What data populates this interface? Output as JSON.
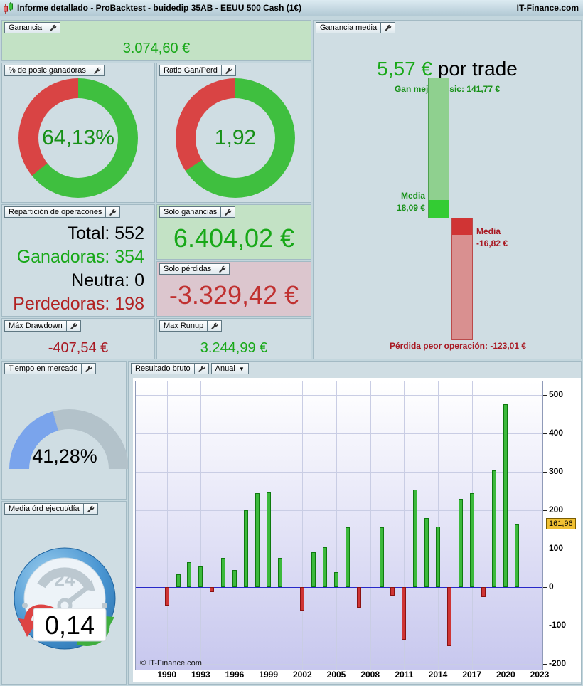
{
  "title_bar": {
    "title": "Informe detallado - ProBacktest - buidedip 35AB - EEUU 500 Cash (1€)",
    "brand": "IT-Finance.com"
  },
  "colors": {
    "green_text": "#18a818",
    "red_text": "#b22222",
    "donut_green": "#3fbf3f",
    "donut_red": "#d94444",
    "gauge_blue": "#7aa4ec",
    "gauge_gray": "#b3c2ca",
    "bar_green": "#3cb93c",
    "bar_red": "#cf3434",
    "highlight_label_bg": "#f0c033"
  },
  "panels": {
    "ganancia": {
      "header": "Ganancia",
      "value": "3.074,60 €"
    },
    "win_rate": {
      "header": "% de posic ganadoras",
      "value": "64,13%"
    },
    "ratio": {
      "header": "Ratio Gan/Perd",
      "value": "1,92"
    },
    "ganancia_media": {
      "header": "Ganancia media",
      "headline_value": "5,57 €",
      "headline_suffix": " por trade",
      "best_label": "Gan mejor posic: 141,77 €",
      "avg_win_label": "Media",
      "avg_win_value": "18,09 €",
      "avg_loss_label": "Media",
      "avg_loss_value": "-16,82 €",
      "worst_label": "Pérdida peor operación: -123,01 €"
    },
    "reparticion": {
      "header": "Repartición de operacones",
      "rows": [
        {
          "label": "Total: ",
          "value": "552",
          "color": "#000000"
        },
        {
          "label": "Ganadoras: ",
          "value": "354",
          "color": "#18a818"
        },
        {
          "label": "Neutra: ",
          "value": "0",
          "color": "#000000"
        },
        {
          "label": "Perdedoras: ",
          "value": "198",
          "color": "#b22222"
        }
      ]
    },
    "solo_ganancias": {
      "header": "Solo ganancias",
      "value": "6.404,02 €"
    },
    "solo_perdidas": {
      "header": "Solo pérdidas",
      "value": "-3.329,42 €"
    },
    "max_drawdown": {
      "header": "Máx Drawdown",
      "value": "-407,54 €"
    },
    "max_runup": {
      "header": "Max Runup",
      "value": "3.244,99 €"
    },
    "tiempo": {
      "header": "Tiempo en mercado",
      "value": "41,28%"
    },
    "media_ord": {
      "header": "Media órd ejecut/día",
      "value": "0,14",
      "clock_label": "24"
    },
    "resultado": {
      "header": "Resultado bruto",
      "period": "Anual",
      "watermark": "© IT-Finance.com",
      "last_value_label": "161,96"
    }
  },
  "chart_data": [
    {
      "id": "win_rate_donut",
      "type": "pie",
      "title": "% de posic ganadoras",
      "center_label": "64,13%",
      "slices": [
        {
          "name": "ganadoras",
          "value": 64.13,
          "color": "#3fbf3f"
        },
        {
          "name": "perdedoras",
          "value": 35.87,
          "color": "#d94444"
        }
      ]
    },
    {
      "id": "ratio_donut",
      "type": "pie",
      "title": "Ratio Gan/Perd",
      "center_label": "1,92",
      "slices": [
        {
          "name": "ganancias",
          "value": 65.75,
          "color": "#3fbf3f"
        },
        {
          "name": "pérdidas",
          "value": 34.25,
          "color": "#d94444"
        }
      ]
    },
    {
      "id": "tiempo_gauge",
      "type": "pie",
      "title": "Tiempo en mercado",
      "percent": 41.28,
      "center_label": "41,28%"
    },
    {
      "id": "ganancia_media_waterfall",
      "type": "bar",
      "title": "Ganancia media",
      "unit": "€",
      "avg_per_trade": 5.57,
      "points": [
        {
          "name": "mejor posición",
          "value": 141.77
        },
        {
          "name": "media ganadora",
          "value": 18.09
        },
        {
          "name": "media perdedora",
          "value": -16.82
        },
        {
          "name": "peor operación",
          "value": -123.01
        }
      ]
    },
    {
      "id": "annual_results",
      "type": "bar",
      "title": "Resultado bruto",
      "period": "Anual",
      "xlabel": "",
      "ylabel": "",
      "grid": true,
      "legend": false,
      "x": [
        1990,
        1991,
        1992,
        1993,
        1994,
        1995,
        1996,
        1997,
        1998,
        1999,
        2000,
        2001,
        2002,
        2003,
        2004,
        2005,
        2006,
        2007,
        2008,
        2009,
        2010,
        2011,
        2012,
        2013,
        2014,
        2015,
        2016,
        2017,
        2018,
        2019,
        2020,
        2021
      ],
      "values": [
        -48,
        33,
        64,
        54,
        -14,
        75,
        44,
        200,
        244,
        246,
        75,
        0,
        -62,
        91,
        103,
        38,
        155,
        -53,
        0,
        155,
        -22,
        -138,
        254,
        180,
        157,
        -153,
        229,
        245,
        -27,
        303,
        476,
        161.96
      ],
      "xticks": [
        1990,
        1993,
        1996,
        1999,
        2002,
        2005,
        2008,
        2011,
        2014,
        2017,
        2020,
        2023
      ],
      "yticks": [
        -200,
        -100,
        0,
        100,
        200,
        300,
        400,
        500
      ],
      "xlim": [
        1987.25,
        2023.25
      ],
      "ylim": [
        -215,
        535
      ],
      "last_value_label": "161,96"
    }
  ]
}
